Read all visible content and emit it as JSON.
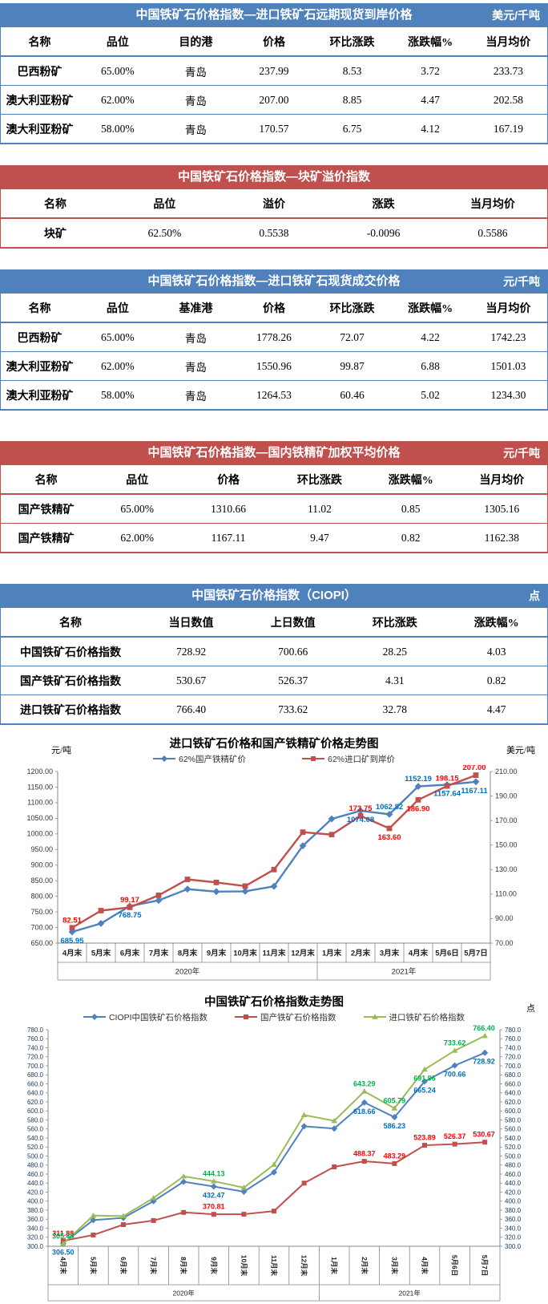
{
  "tables": [
    {
      "theme": "blue",
      "title": "中国铁矿石价格指数—进口铁矿石远期现货到岸价格",
      "unit": "美元/千吨",
      "columns": [
        "名称",
        "品位",
        "目的港",
        "价格",
        "环比涨跌",
        "涨跌幅%",
        "当月均价"
      ],
      "rows": [
        [
          "巴西粉矿",
          "65.00%",
          "青岛",
          "237.99",
          "8.53",
          "3.72",
          "233.73"
        ],
        [
          "澳大利亚粉矿",
          "62.00%",
          "青岛",
          "207.00",
          "8.85",
          "4.47",
          "202.58"
        ],
        [
          "澳大利亚粉矿",
          "58.00%",
          "青岛",
          "170.57",
          "6.75",
          "4.12",
          "167.19"
        ]
      ]
    },
    {
      "theme": "red",
      "title": "中国铁矿石价格指数—块矿溢价指数",
      "unit": "",
      "columns": [
        "名称",
        "品位",
        "溢价",
        "涨跌",
        "当月均价"
      ],
      "rows": [
        [
          "块矿",
          "62.50%",
          "0.5538",
          "-0.0096",
          "0.5586"
        ]
      ]
    },
    {
      "theme": "blue",
      "title": "中国铁矿石价格指数—进口铁矿石现货成交价格",
      "unit": "元/千吨",
      "columns": [
        "名称",
        "品位",
        "基准港",
        "价格",
        "环比涨跌",
        "涨跌幅%",
        "当月均价"
      ],
      "rows": [
        [
          "巴西粉矿",
          "65.00%",
          "青岛",
          "1778.26",
          "72.07",
          "4.22",
          "1742.23"
        ],
        [
          "澳大利亚粉矿",
          "62.00%",
          "青岛",
          "1550.96",
          "99.87",
          "6.88",
          "1501.03"
        ],
        [
          "澳大利亚粉矿",
          "58.00%",
          "青岛",
          "1264.53",
          "60.46",
          "5.02",
          "1234.30"
        ]
      ]
    },
    {
      "theme": "red",
      "title": "中国铁矿石价格指数—国内铁精矿加权平均价格",
      "unit": "元/千吨",
      "columns": [
        "名称",
        "品位",
        "价格",
        "环比涨跌",
        "涨跌幅%",
        "当月均价"
      ],
      "rows": [
        [
          "国产铁精矿",
          "65.00%",
          "1310.66",
          "11.02",
          "0.85",
          "1305.16"
        ],
        [
          "国产铁精矿",
          "62.00%",
          "1167.11",
          "9.47",
          "0.82",
          "1162.38"
        ]
      ]
    },
    {
      "theme": "blue",
      "title": "中国铁矿石价格指数（CIOPI）",
      "unit": "点",
      "columns": [
        "名称",
        "当日数值",
        "上日数值",
        "环比涨跌",
        "涨跌幅%"
      ],
      "rows": [
        [
          "中国铁矿石价格指数",
          "728.92",
          "700.66",
          "28.25",
          "4.03"
        ],
        [
          "国产铁矿石价格指数",
          "530.67",
          "526.37",
          "4.31",
          "0.82"
        ],
        [
          "进口铁矿石价格指数",
          "766.40",
          "733.62",
          "32.78",
          "4.47"
        ]
      ]
    }
  ],
  "chart_data": [
    {
      "type": "line",
      "title": "进口铁矿石价格和国产铁精矿价格走势图",
      "left_axis_unit": "元/吨",
      "right_axis_unit": "美元/吨",
      "categories": [
        "4月末",
        "5月末",
        "6月末",
        "7月末",
        "8月末",
        "9月末",
        "10月末",
        "11月末",
        "12月末",
        "1月末",
        "2月末",
        "3月末",
        "4月末",
        "5月6日",
        "5月7日"
      ],
      "category_groups": [
        {
          "label": "2020年",
          "count": 9
        },
        {
          "label": "2021年",
          "count": 6
        }
      ],
      "left_axis": {
        "min": 650,
        "max": 1200,
        "step": 50,
        "decimals": 2
      },
      "right_axis": {
        "min": 70,
        "max": 210,
        "step": 20,
        "decimals": 2
      },
      "grid": false,
      "legend_position": "top",
      "series": [
        {
          "name": "62%国产铁精矿价",
          "axis": "left",
          "color": "#4F81BD",
          "label_color": "#0070C0",
          "marker": "diamond",
          "values": [
            685.95,
            713,
            768.75,
            787,
            823,
            815,
            816,
            832,
            962,
            1048,
            1074.08,
            1062.82,
            1152.19,
            1157.64,
            1167.11
          ],
          "point_labels": [
            {
              "i": 0,
              "text": "685.95",
              "pos": "below"
            },
            {
              "i": 2,
              "text": "768.75",
              "pos": "below"
            },
            {
              "i": 10,
              "text": "1074.08",
              "pos": "below"
            },
            {
              "i": 11,
              "text": "1062.82",
              "pos": "above"
            },
            {
              "i": 12,
              "text": "1152.19",
              "pos": "above"
            },
            {
              "i": 13,
              "text": "1157.64",
              "pos": "below"
            },
            {
              "i": 14,
              "text": "1167.11",
              "pos": "below"
            }
          ]
        },
        {
          "name": "62%进口矿到岸价",
          "axis": "right",
          "color": "#C0504D",
          "label_color": "#FF0000",
          "marker": "square",
          "values": [
            82.51,
            96.5,
            99.17,
            109,
            122,
            119.5,
            116.5,
            130,
            160.5,
            158.5,
            173.75,
            163.6,
            186.9,
            198.15,
            207.0
          ],
          "point_labels": [
            {
              "i": 0,
              "text": "82.51",
              "pos": "above"
            },
            {
              "i": 2,
              "text": "99.17",
              "pos": "above"
            },
            {
              "i": 10,
              "text": "173.75",
              "pos": "above"
            },
            {
              "i": 11,
              "text": "163.60",
              "pos": "below"
            },
            {
              "i": 12,
              "text": "186.90",
              "pos": "below"
            },
            {
              "i": 13,
              "text": "198.15",
              "pos": "above"
            },
            {
              "i": 14,
              "text": "207.00",
              "pos": "above"
            }
          ]
        }
      ]
    },
    {
      "type": "line",
      "title": "中国铁矿石价格指数走势图",
      "right_axis_unit": "点",
      "categories": [
        "4月末",
        "5月末",
        "6月末",
        "7月末",
        "8月末",
        "9月末",
        "10月末",
        "11月末",
        "12月末",
        "1月末",
        "2月末",
        "3月末",
        "4月末",
        "5月6日",
        "5月7日"
      ],
      "category_groups": [
        {
          "label": "2020年",
          "count": 9
        },
        {
          "label": "2021年",
          "count": 6
        }
      ],
      "left_axis": {
        "min": 300,
        "max": 780,
        "step": 20,
        "decimals": 1
      },
      "right_axis": {
        "min": 300,
        "max": 780,
        "step": 20,
        "decimals": 1
      },
      "grid": false,
      "legend_position": "top",
      "series": [
        {
          "name": "CIOPI中国铁矿石价格指数",
          "axis": "left",
          "color": "#4F81BD",
          "label_color": "#0070C0",
          "marker": "diamond",
          "values": [
            306.5,
            358,
            363,
            400,
            443,
            432.47,
            421,
            464,
            566,
            561,
            618.66,
            586.23,
            665.24,
            700.66,
            728.92
          ],
          "point_labels": [
            {
              "i": 0,
              "text": "306.50",
              "pos": "below"
            },
            {
              "i": 5,
              "text": "432.47",
              "pos": "below"
            },
            {
              "i": 10,
              "text": "618.66",
              "pos": "below"
            },
            {
              "i": 11,
              "text": "586.23",
              "pos": "below"
            },
            {
              "i": 12,
              "text": "665.24",
              "pos": "below"
            },
            {
              "i": 13,
              "text": "700.66",
              "pos": "below"
            },
            {
              "i": 14,
              "text": "728.92",
              "pos": "below"
            }
          ]
        },
        {
          "name": "国产铁矿石价格指数",
          "axis": "left",
          "color": "#C0504D",
          "label_color": "#FF0000",
          "marker": "square",
          "values": [
            311.88,
            325,
            348,
            357,
            375,
            370.81,
            371,
            378,
            440,
            476,
            488.37,
            483.29,
            523.89,
            526.37,
            530.67
          ],
          "point_labels": [
            {
              "i": 0,
              "text": "311.88",
              "pos": "above"
            },
            {
              "i": 5,
              "text": "370.81",
              "pos": "above"
            },
            {
              "i": 10,
              "text": "488.37",
              "pos": "above"
            },
            {
              "i": 11,
              "text": "483.29",
              "pos": "above"
            },
            {
              "i": 12,
              "text": "523.89",
              "pos": "above"
            },
            {
              "i": 13,
              "text": "526.37",
              "pos": "above"
            },
            {
              "i": 14,
              "text": "530.67",
              "pos": "above"
            }
          ]
        },
        {
          "name": "进口铁矿石价格指数",
          "axis": "left",
          "color": "#9BBB59",
          "label_color": "#00B050",
          "marker": "triangle",
          "values": [
            305.44,
            368,
            367,
            407,
            455,
            444.13,
            430,
            481,
            591,
            578,
            643.29,
            605.79,
            691.96,
            733.62,
            766.4
          ],
          "point_labels": [
            {
              "i": 0,
              "text": "305.44",
              "pos": "above"
            },
            {
              "i": 5,
              "text": "444.13",
              "pos": "above"
            },
            {
              "i": 10,
              "text": "643.29",
              "pos": "above"
            },
            {
              "i": 11,
              "text": "605.79",
              "pos": "above"
            },
            {
              "i": 12,
              "text": "691.96",
              "pos": "below"
            },
            {
              "i": 13,
              "text": "733.62",
              "pos": "above"
            },
            {
              "i": 14,
              "text": "766.40",
              "pos": "above"
            }
          ]
        }
      ]
    }
  ]
}
